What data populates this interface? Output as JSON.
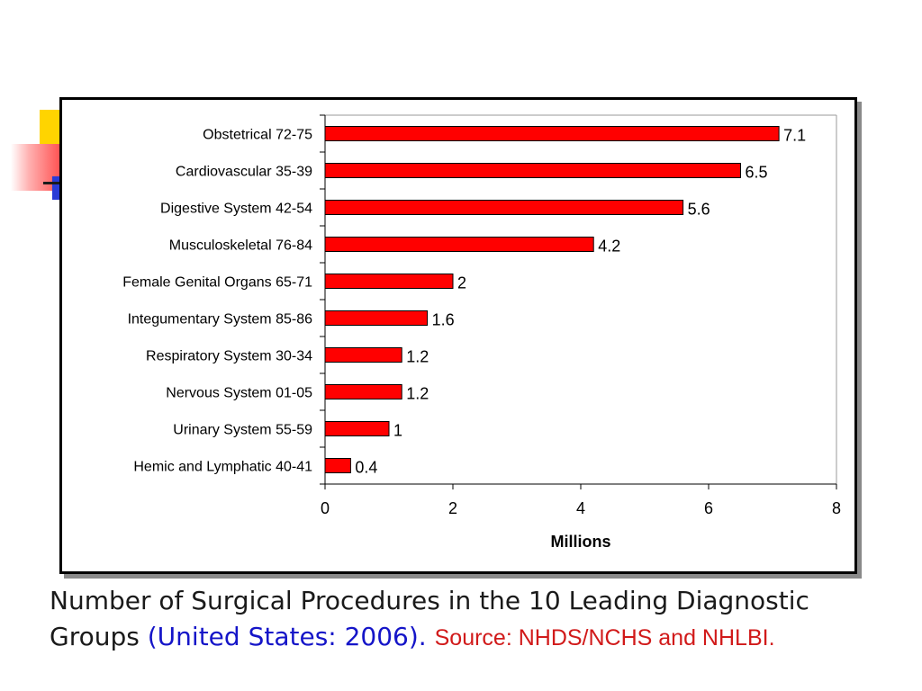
{
  "caption": {
    "line1": "Number of Surgical Procedures in the 10 Leading Diagnostic",
    "line2_main": "Groups",
    "line2_paren": "(United States: 2006).",
    "line2_source": "Source: NHDS/NCHS and NHLBI."
  },
  "colors": {
    "bar_fill": "#ff0000",
    "bar_stroke": "#000000",
    "caption_text": "#1a1a1a",
    "caption_paren": "#1515c8",
    "caption_source": "#d11a1a"
  },
  "chart_data": {
    "type": "bar",
    "orientation": "horizontal",
    "title": "",
    "xlabel": "Millions",
    "ylabel": "",
    "xlim": [
      0,
      8
    ],
    "xticks": [
      0,
      2,
      4,
      6,
      8
    ],
    "grid": false,
    "legend": "none",
    "data_labels": true,
    "categories": [
      "Obstetrical 72-75",
      "Cardiovascular 35-39",
      "Digestive System 42-54",
      "Musculoskeletal 76-84",
      "Female Genital Organs 65-71",
      "Integumentary System 85-86",
      "Respiratory System 30-34",
      "Nervous System 01-05",
      "Urinary System 55-59",
      "Hemic and Lymphatic 40-41"
    ],
    "values": [
      7.1,
      6.5,
      5.6,
      4.2,
      2,
      1.6,
      1.2,
      1.2,
      1,
      0.4
    ]
  }
}
